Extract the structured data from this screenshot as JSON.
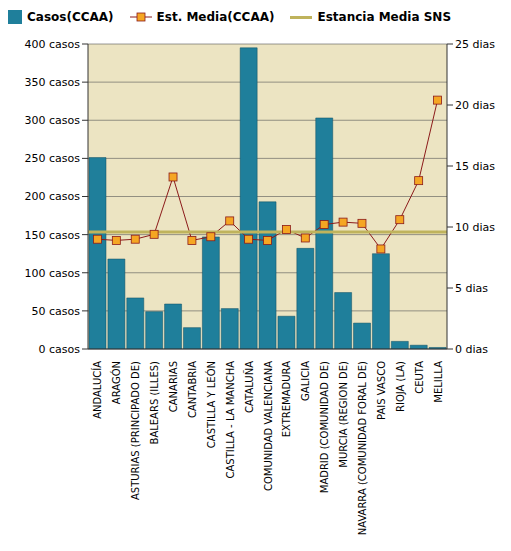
{
  "chart_data": {
    "type": "bar",
    "categories": [
      "ANDALUCÍA",
      "ARAGÓN",
      "ASTURIAS (PRINCIPADO DE)",
      "BALEARS (ILLES)",
      "CANARIAS",
      "CANTABRIA",
      "CASTILLA Y LEÓN",
      "CASTILLA - LA MANCHA",
      "CATALUÑA",
      "COMUNIDAD VALENCIANA",
      "EXTREMADURA",
      "GALICIA",
      "MADRID (COMUNIDAD DE)",
      "MURCIA (REGION DE)",
      "NAVARRA (COMUNIDAD FORAL DE)",
      "PAIS VASCO",
      "RIOJA (LA)",
      "CEUTA",
      "MELILLA"
    ],
    "series": [
      {
        "name": "Casos(CCAA)",
        "type": "bar",
        "color": "#1f7f9b",
        "values": [
          251,
          118,
          67,
          49,
          59,
          28,
          147,
          53,
          395,
          193,
          43,
          132,
          303,
          74,
          34,
          125,
          10,
          5,
          2
        ]
      },
      {
        "name": "Est. Media(CCAA)",
        "type": "line",
        "axis": "y2",
        "color": "#8b1a1a",
        "marker": "square",
        "values": [
          9.0,
          8.9,
          9.0,
          9.4,
          14.1,
          8.9,
          9.2,
          10.5,
          9.0,
          8.9,
          9.8,
          9.1,
          10.2,
          10.4,
          10.3,
          8.2,
          10.6,
          13.8,
          20.4
        ]
      },
      {
        "name": "Estancia Media SNS",
        "type": "reference",
        "axis": "y2",
        "color": "#bfb35c",
        "value": 9.6
      }
    ],
    "ylim": [
      0,
      400
    ],
    "yticks": [
      {
        "value": 0,
        "label": "0 casos"
      },
      {
        "value": 50,
        "label": "50 casos"
      },
      {
        "value": 100,
        "label": "100 casos"
      },
      {
        "value": 150,
        "label": "150 casos"
      },
      {
        "value": 200,
        "label": "200 casos"
      },
      {
        "value": 250,
        "label": "250 casos"
      },
      {
        "value": 300,
        "label": "300 casos"
      },
      {
        "value": 350,
        "label": "350 casos"
      },
      {
        "value": 400,
        "label": "400 casos"
      }
    ],
    "y2lim": [
      0,
      25
    ],
    "y2ticks": [
      {
        "value": 0,
        "label": "0 dias"
      },
      {
        "value": 5,
        "label": "5 dias"
      },
      {
        "value": 10,
        "label": "10 dias"
      },
      {
        "value": 15,
        "label": "15 dias"
      },
      {
        "value": 20,
        "label": "20 dias"
      },
      {
        "value": 25,
        "label": "25 dias"
      }
    ],
    "grid": true,
    "legend": "top"
  }
}
